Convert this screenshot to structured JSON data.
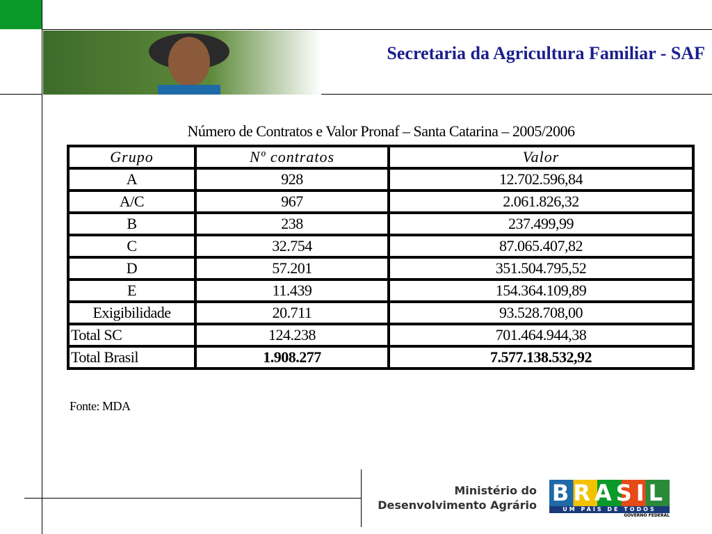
{
  "header": {
    "title": "Secretaria da Agricultura Familiar - SAF"
  },
  "table": {
    "caption": "Número de Contratos  e Valor Pronaf – Santa Catarina – 2005/2006",
    "columns": [
      "Grupo",
      "Nº  contratos",
      "Valor"
    ],
    "rows": [
      [
        "A",
        "928",
        "12.702.596,84"
      ],
      [
        "A/C",
        "967",
        "2.061.826,32"
      ],
      [
        "B",
        "238",
        "237.499,99"
      ],
      [
        "C",
        "32.754",
        "87.065.407,82"
      ],
      [
        "D",
        "57.201",
        "351.504.795,52"
      ],
      [
        "E",
        "11.439",
        "154.364.109,89"
      ],
      [
        "Exigibilidade",
        "20.711",
        "93.528.708,00"
      ],
      [
        "Total SC",
        "124.238",
        "701.464.944,38"
      ],
      [
        "Total Brasil",
        "1.908.277",
        "7.577.138.532,92"
      ]
    ],
    "source": "Fonte: MDA"
  },
  "footer": {
    "ministry_line1": "Ministério do",
    "ministry_line2": "Desenvolvimento Agrário",
    "logo": "BRASIL",
    "slogan": "UM PAÍS DE TODOS",
    "government": "GOVERNO FEDERAL"
  }
}
